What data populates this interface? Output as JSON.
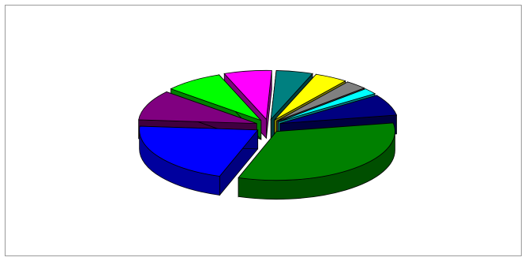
{
  "chart_data": {
    "type": "pie",
    "style": "3d-exploded",
    "title": "",
    "legend": "none",
    "slices": [
      {
        "value": 33.0,
        "color": "#008000"
      },
      {
        "value": 21.0,
        "color": "#0000ff"
      },
      {
        "value": 10.0,
        "color": "#800080"
      },
      {
        "value": 8.0,
        "color": "#00ff00"
      },
      {
        "value": 6.5,
        "color": "#ff00ff"
      },
      {
        "value": 5.0,
        "color": "#008080"
      },
      {
        "value": 4.5,
        "color": "#ffff00"
      },
      {
        "value": 3.0,
        "color": "#808080"
      },
      {
        "value": 2.0,
        "color": "#00ffff"
      },
      {
        "value": 7.0,
        "color": "#000080"
      }
    ]
  }
}
